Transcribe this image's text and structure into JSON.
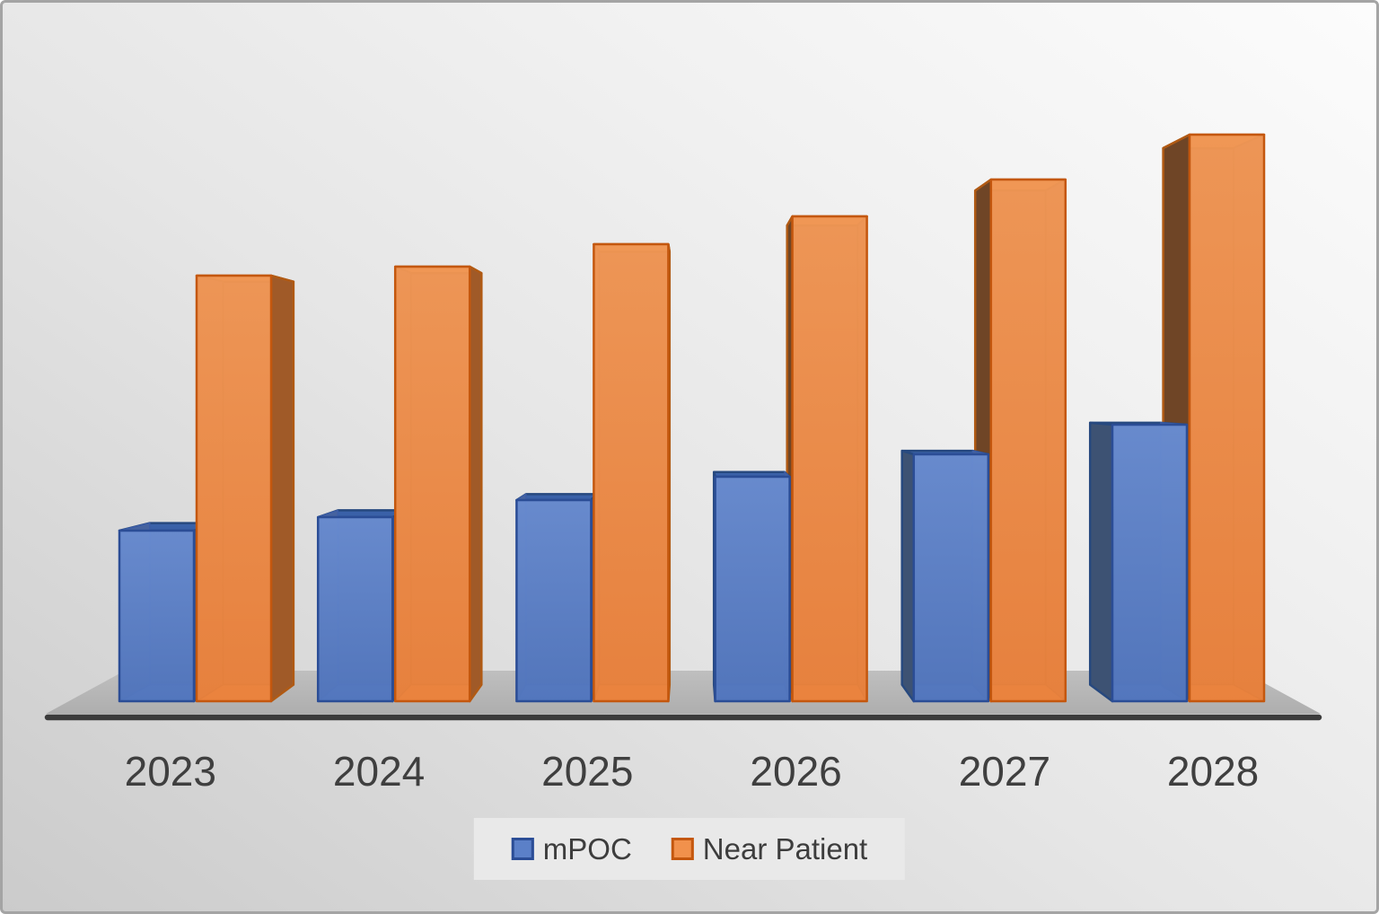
{
  "chart_data": {
    "type": "bar",
    "subtype": "3d-clustered-column",
    "title": "",
    "xlabel": "",
    "ylabel": "",
    "categories": [
      "2023",
      "2024",
      "2025",
      "2026",
      "2027",
      "2028"
    ],
    "series": [
      {
        "name": "mPOC",
        "color": "#5b80c8",
        "stroke": "#2b4d96",
        "values": [
          190,
          205,
          224,
          250,
          275,
          308
        ]
      },
      {
        "name": "Near Patient",
        "color": "#f1914c",
        "stroke": "#c4570e",
        "values": [
          474,
          484,
          509,
          540,
          581,
          631
        ]
      }
    ],
    "value_axis_visible": false,
    "gridlines": false,
    "legend_position": "bottom",
    "value_note": "no value axis shown; values are relative bar heights (px, baseline to front top edge)"
  },
  "style": {
    "background_top": "#fbfbfb",
    "background_mid": "#e9e9e9",
    "background_bottom": "#cbcbcb",
    "frame_border": "#a4a4a4",
    "floor_back": "#bfbfbf",
    "floor_front": "#aeaeae",
    "axis_line": "#3b3b3b",
    "category_label_color": "#3f3f3f",
    "legend_bg": "#e9e9e9",
    "legend_text": "#3d3d3d"
  }
}
